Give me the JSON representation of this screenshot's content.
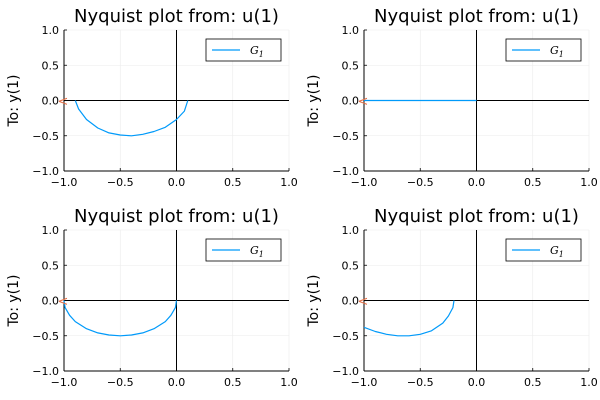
{
  "chart_data": [
    {
      "type": "line",
      "title": "Nyquist plot from: u(1)",
      "ylabel": "To: y(1)",
      "xlabel": "",
      "xlim": [
        -1,
        1
      ],
      "ylim": [
        -1,
        1
      ],
      "xticks": [
        "-1.0",
        "-0.5",
        "0.0",
        "0.5",
        "1.0"
      ],
      "yticks": [
        "-1.0",
        "-0.5",
        "0.0",
        "0.5",
        "1.0"
      ],
      "grid": true,
      "legend": {
        "position": "top-right",
        "entries": [
          "G1"
        ]
      },
      "series": [
        {
          "name": "G1",
          "x": [
            0.1,
            0.07,
            0.0,
            -0.1,
            -0.2,
            -0.3,
            -0.4,
            -0.5,
            -0.6,
            -0.7,
            -0.8,
            -0.87,
            -0.9
          ],
          "y": [
            0.0,
            -0.15,
            -0.27,
            -0.38,
            -0.44,
            -0.48,
            -0.5,
            -0.49,
            -0.46,
            -0.39,
            -0.27,
            -0.12,
            0.0
          ]
        }
      ],
      "marker": {
        "x": -1,
        "y": 0,
        "label": "<"
      }
    },
    {
      "type": "line",
      "title": "Nyquist plot from: u(1)",
      "ylabel": "To: y(1)",
      "xlabel": "",
      "xlim": [
        -1,
        1
      ],
      "ylim": [
        -1,
        1
      ],
      "xticks": [
        "-1.0",
        "-0.5",
        "0.0",
        "0.5",
        "1.0"
      ],
      "yticks": [
        "-1.0",
        "-0.5",
        "0.0",
        "0.5",
        "1.0"
      ],
      "grid": true,
      "legend": {
        "position": "top-right",
        "entries": [
          "G1"
        ]
      },
      "series": [
        {
          "name": "G1",
          "x": [
            -1.0,
            -0.5,
            0.0
          ],
          "y": [
            0.0,
            0.0,
            0.0
          ]
        }
      ],
      "marker": {
        "x": -1,
        "y": 0,
        "label": "<"
      }
    },
    {
      "type": "line",
      "title": "Nyquist plot from: u(1)",
      "ylabel": "To: y(1)",
      "xlabel": "",
      "xlim": [
        -1,
        1
      ],
      "ylim": [
        -1,
        1
      ],
      "xticks": [
        "-1.0",
        "-0.5",
        "0.0",
        "0.5",
        "1.0"
      ],
      "yticks": [
        "-1.0",
        "-0.5",
        "0.0",
        "0.5",
        "1.0"
      ],
      "grid": true,
      "legend": {
        "position": "top-right",
        "entries": [
          "G1"
        ]
      },
      "series": [
        {
          "name": "G1",
          "x": [
            0.0,
            -0.01,
            -0.05,
            -0.1,
            -0.2,
            -0.3,
            -0.4,
            -0.5,
            -0.6,
            -0.7,
            -0.8,
            -0.9,
            -0.95,
            -0.99,
            -1.0
          ],
          "y": [
            0.0,
            -0.1,
            -0.21,
            -0.3,
            -0.4,
            -0.46,
            -0.49,
            -0.5,
            -0.49,
            -0.46,
            -0.4,
            -0.3,
            -0.21,
            -0.1,
            0.0
          ]
        }
      ],
      "marker": {
        "x": -1,
        "y": 0,
        "label": "<"
      }
    },
    {
      "type": "line",
      "title": "Nyquist plot from: u(1)",
      "ylabel": "To: y(1)",
      "xlabel": "",
      "xlim": [
        -1,
        1
      ],
      "ylim": [
        -1,
        1
      ],
      "xticks": [
        "-1.0",
        "-0.5",
        "0.0",
        "0.5",
        "1.0"
      ],
      "yticks": [
        "-1.0",
        "-0.5",
        "0.0",
        "0.5",
        "1.0"
      ],
      "grid": true,
      "legend": {
        "position": "top-right",
        "entries": [
          "G1"
        ]
      },
      "series": [
        {
          "name": "G1",
          "x": [
            -0.2,
            -0.21,
            -0.25,
            -0.3,
            -0.4,
            -0.5,
            -0.6,
            -0.7,
            -0.8,
            -0.9,
            -1.0
          ],
          "y": [
            0.0,
            -0.1,
            -0.22,
            -0.32,
            -0.43,
            -0.48,
            -0.5,
            -0.5,
            -0.48,
            -0.44,
            -0.38
          ]
        }
      ],
      "marker": {
        "x": -1,
        "y": 0,
        "label": "<"
      }
    }
  ]
}
